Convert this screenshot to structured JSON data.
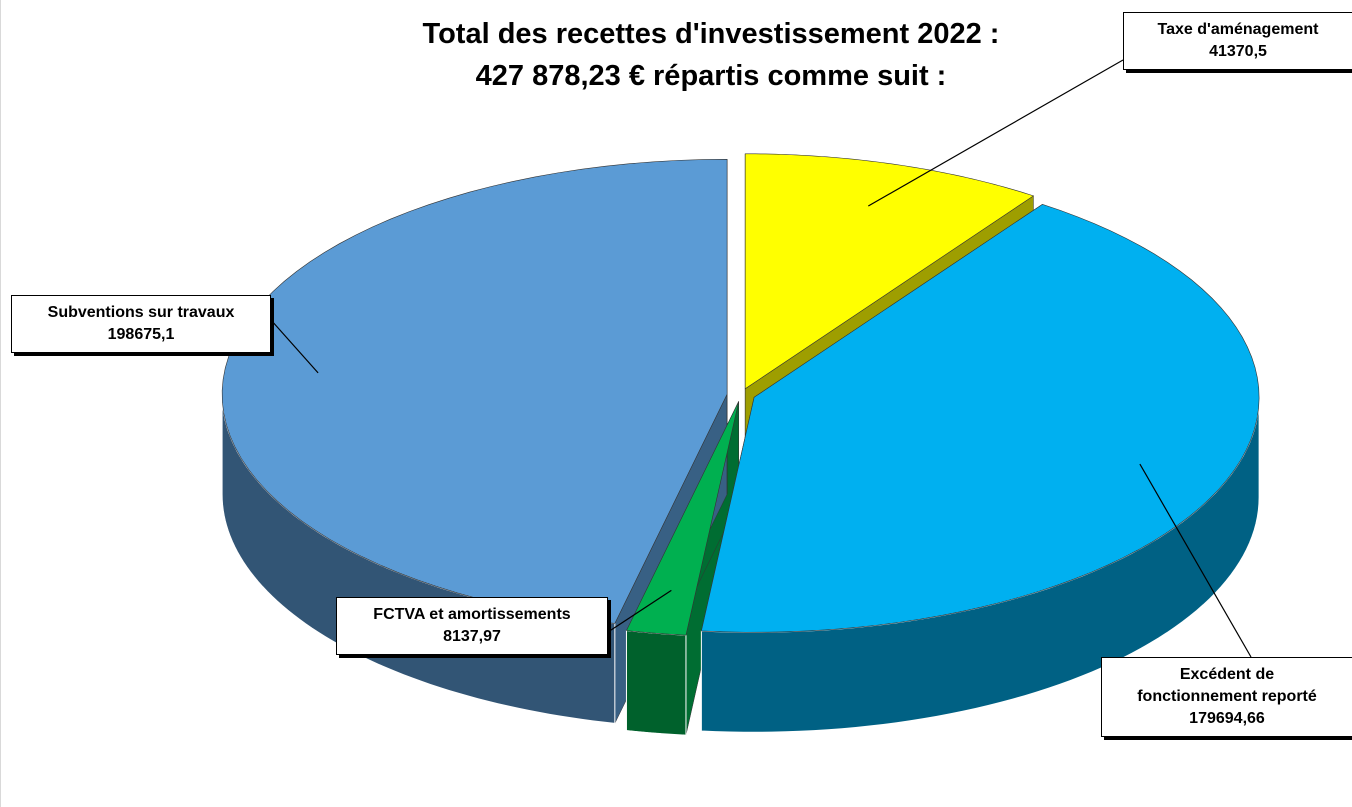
{
  "chart_data": {
    "type": "pie3d",
    "title": "Total des recettes d'investissement 2022 :",
    "subtitle": "427 878,23 € répartis comme suit :",
    "categories": [
      "Taxe d'aménagement",
      "Excédent de fonctionnement reporté",
      "FCTVA et amortissements",
      "Subventions sur travaux"
    ],
    "values": [
      41370.5,
      179694.66,
      8137.97,
      198675.1
    ],
    "value_labels": [
      "41370,5",
      "179694,66",
      "8137,97",
      "198675,1"
    ],
    "colors": [
      "#ffff00",
      "#00b0f0",
      "#00b050",
      "#5b9bd5"
    ]
  }
}
